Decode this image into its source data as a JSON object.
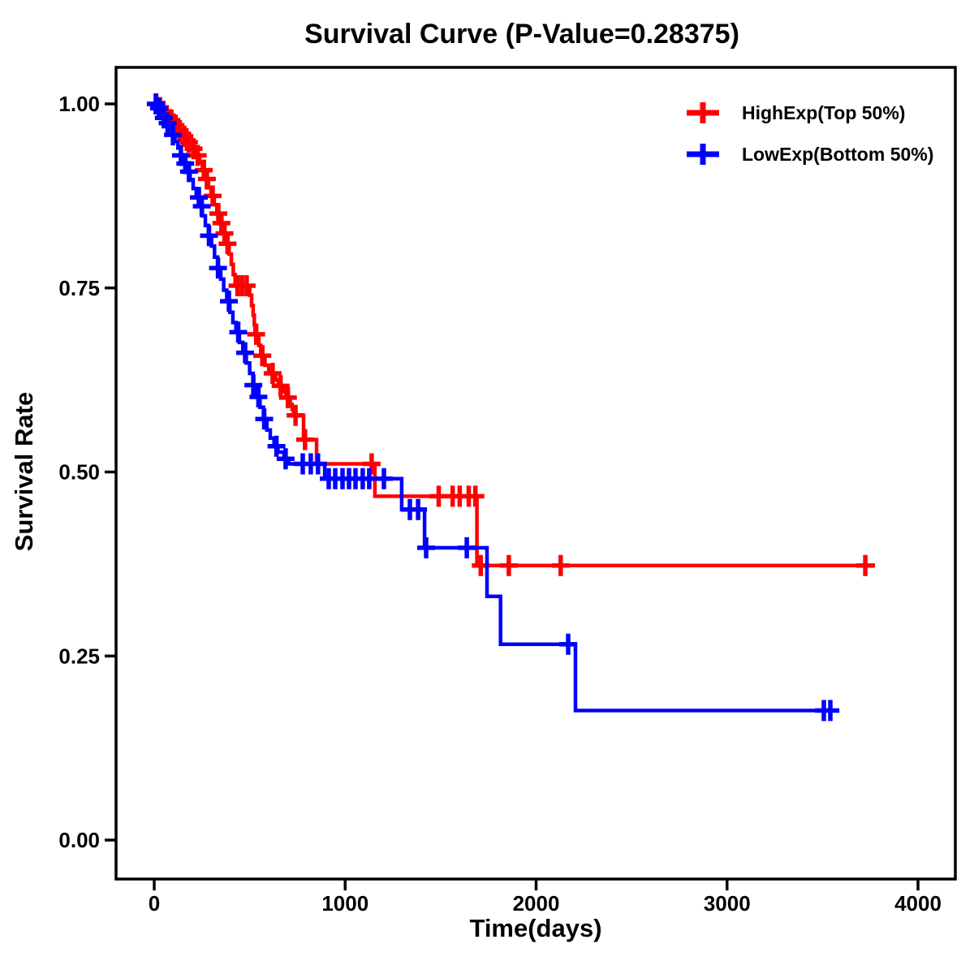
{
  "chart_data": {
    "type": "line",
    "subtype": "kaplan_meier_step_survival",
    "title": "Survival Curve (P-Value=0.28375)",
    "p_value": "0.28375",
    "xlabel": "Time(days)",
    "ylabel": "Survival Rate",
    "grid": false,
    "background": "#ffffff",
    "axis_color": "#000000",
    "xlim": [
      -200,
      4196
    ],
    "ylim": [
      0.0,
      1.05
    ],
    "legend_position": "top-right-inside",
    "x_ticks": [
      {
        "value": 0,
        "label": "0"
      },
      {
        "value": 1000,
        "label": "1000"
      },
      {
        "value": 2000,
        "label": "2000"
      },
      {
        "value": 3000,
        "label": "3000"
      },
      {
        "value": 4000,
        "label": "4000"
      }
    ],
    "y_ticks": [
      {
        "value": 0.0,
        "label": "0.00"
      },
      {
        "value": 0.25,
        "label": "0.25"
      },
      {
        "value": 0.5,
        "label": "0.50"
      },
      {
        "value": 0.75,
        "label": "0.75"
      },
      {
        "value": 1.0,
        "label": "1.00"
      }
    ],
    "legend": [
      {
        "label": "HighExp(Top 50%)",
        "color": "#FF0000",
        "marker": "plus"
      },
      {
        "label": "LowExp(Bottom 50%)",
        "color": "#0000FF",
        "marker": "plus"
      }
    ],
    "series": [
      {
        "name": "HighExp(Top 50%)",
        "color": "#FF0000",
        "steps": [
          [
            0,
            1.0
          ],
          [
            22,
            0.995
          ],
          [
            40,
            0.99
          ],
          [
            58,
            0.984
          ],
          [
            78,
            0.978
          ],
          [
            100,
            0.971
          ],
          [
            122,
            0.964
          ],
          [
            146,
            0.956
          ],
          [
            170,
            0.948
          ],
          [
            194,
            0.939
          ],
          [
            218,
            0.93
          ],
          [
            238,
            0.92
          ],
          [
            252,
            0.91
          ],
          [
            268,
            0.898
          ],
          [
            284,
            0.886
          ],
          [
            298,
            0.875
          ],
          [
            314,
            0.863
          ],
          [
            328,
            0.851
          ],
          [
            344,
            0.838
          ],
          [
            360,
            0.824
          ],
          [
            376,
            0.81
          ],
          [
            392,
            0.796
          ],
          [
            404,
            0.782
          ],
          [
            414,
            0.768
          ],
          [
            424,
            0.753
          ],
          [
            500,
            0.74
          ],
          [
            510,
            0.726
          ],
          [
            518,
            0.713
          ],
          [
            524,
            0.7
          ],
          [
            528,
            0.687
          ],
          [
            548,
            0.672
          ],
          [
            558,
            0.658
          ],
          [
            580,
            0.645
          ],
          [
            600,
            0.634
          ],
          [
            636,
            0.625
          ],
          [
            650,
            0.617
          ],
          [
            678,
            0.609
          ],
          [
            690,
            0.601
          ],
          [
            712,
            0.592
          ],
          [
            722,
            0.585
          ],
          [
            730,
            0.577
          ],
          [
            782,
            0.544
          ],
          [
            850,
            0.511
          ],
          [
            1156,
            0.467
          ],
          [
            1690,
            0.373
          ],
          [
            3775,
            0.373
          ]
        ],
        "censor_marks": [
          [
            10,
            1.0
          ],
          [
            30,
            0.995
          ],
          [
            48,
            0.99
          ],
          [
            66,
            0.984
          ],
          [
            90,
            0.978
          ],
          [
            112,
            0.971
          ],
          [
            134,
            0.964
          ],
          [
            158,
            0.956
          ],
          [
            182,
            0.948
          ],
          [
            206,
            0.939
          ],
          [
            228,
            0.93
          ],
          [
            260,
            0.91
          ],
          [
            276,
            0.898
          ],
          [
            306,
            0.875
          ],
          [
            336,
            0.851
          ],
          [
            352,
            0.838
          ],
          [
            368,
            0.824
          ],
          [
            384,
            0.81
          ],
          [
            436,
            0.753
          ],
          [
            460,
            0.753
          ],
          [
            484,
            0.753
          ],
          [
            534,
            0.687
          ],
          [
            566,
            0.658
          ],
          [
            620,
            0.634
          ],
          [
            662,
            0.617
          ],
          [
            700,
            0.601
          ],
          [
            740,
            0.577
          ],
          [
            790,
            0.544
          ],
          [
            1139,
            0.511
          ],
          [
            1490,
            0.467
          ],
          [
            1563,
            0.467
          ],
          [
            1600,
            0.467
          ],
          [
            1647,
            0.467
          ],
          [
            1682,
            0.467
          ],
          [
            1710,
            0.373
          ],
          [
            1857,
            0.373
          ],
          [
            2129,
            0.373
          ],
          [
            3724,
            0.373
          ]
        ]
      },
      {
        "name": "LowExp(Bottom 50%)",
        "color": "#0000FF",
        "steps": [
          [
            0,
            1.0
          ],
          [
            15,
            0.994
          ],
          [
            30,
            0.988
          ],
          [
            45,
            0.981
          ],
          [
            60,
            0.974
          ],
          [
            76,
            0.966
          ],
          [
            92,
            0.958
          ],
          [
            108,
            0.949
          ],
          [
            124,
            0.94
          ],
          [
            140,
            0.93
          ],
          [
            156,
            0.919
          ],
          [
            172,
            0.908
          ],
          [
            188,
            0.897
          ],
          [
            204,
            0.885
          ],
          [
            220,
            0.873
          ],
          [
            236,
            0.861
          ],
          [
            252,
            0.848
          ],
          [
            268,
            0.835
          ],
          [
            284,
            0.821
          ],
          [
            300,
            0.807
          ],
          [
            316,
            0.792
          ],
          [
            332,
            0.777
          ],
          [
            348,
            0.762
          ],
          [
            364,
            0.747
          ],
          [
            380,
            0.732
          ],
          [
            396,
            0.717
          ],
          [
            412,
            0.703
          ],
          [
            428,
            0.69
          ],
          [
            446,
            0.676
          ],
          [
            464,
            0.662
          ],
          [
            482,
            0.648
          ],
          [
            500,
            0.634
          ],
          [
            518,
            0.618
          ],
          [
            536,
            0.602
          ],
          [
            554,
            0.588
          ],
          [
            572,
            0.572
          ],
          [
            590,
            0.557
          ],
          [
            608,
            0.546
          ],
          [
            628,
            0.535
          ],
          [
            648,
            0.527
          ],
          [
            680,
            0.518
          ],
          [
            705,
            0.511
          ],
          [
            893,
            0.491
          ],
          [
            1296,
            0.449
          ],
          [
            1416,
            0.397
          ],
          [
            1743,
            0.331
          ],
          [
            1814,
            0.266
          ],
          [
            2206,
            0.176
          ],
          [
            3588,
            0.176
          ]
        ],
        "censor_marks": [
          [
            8,
            1.0
          ],
          [
            25,
            0.994
          ],
          [
            50,
            0.981
          ],
          [
            70,
            0.974
          ],
          [
            98,
            0.958
          ],
          [
            140,
            0.93
          ],
          [
            163,
            0.919
          ],
          [
            182,
            0.908
          ],
          [
            234,
            0.873
          ],
          [
            249,
            0.861
          ],
          [
            287,
            0.821
          ],
          [
            334,
            0.777
          ],
          [
            391,
            0.732
          ],
          [
            440,
            0.69
          ],
          [
            476,
            0.662
          ],
          [
            519,
            0.618
          ],
          [
            546,
            0.602
          ],
          [
            576,
            0.572
          ],
          [
            640,
            0.535
          ],
          [
            688,
            0.518
          ],
          [
            778,
            0.511
          ],
          [
            820,
            0.511
          ],
          [
            858,
            0.511
          ],
          [
            914,
            0.491
          ],
          [
            948,
            0.491
          ],
          [
            986,
            0.491
          ],
          [
            1020,
            0.491
          ],
          [
            1054,
            0.491
          ],
          [
            1092,
            0.491
          ],
          [
            1126,
            0.491
          ],
          [
            1203,
            0.491
          ],
          [
            1339,
            0.449
          ],
          [
            1382,
            0.449
          ],
          [
            1424,
            0.397
          ],
          [
            1637,
            0.397
          ],
          [
            2168,
            0.266
          ],
          [
            3507,
            0.176
          ],
          [
            3541,
            0.176
          ]
        ]
      }
    ]
  }
}
